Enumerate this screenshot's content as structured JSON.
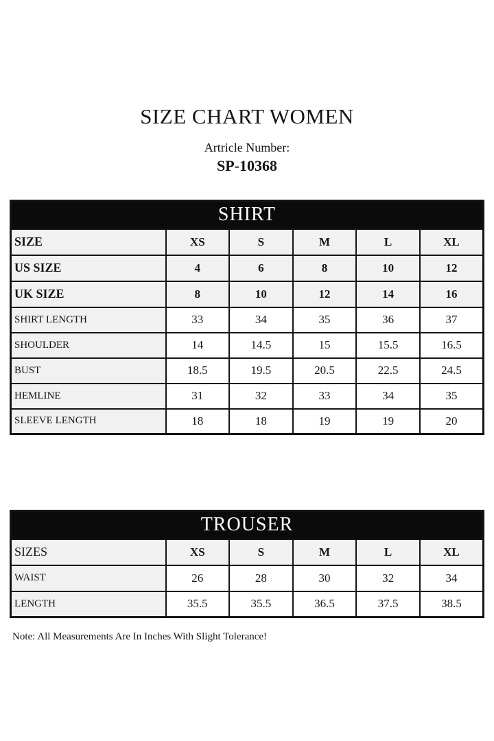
{
  "header": {
    "title": "SIZE CHART WOMEN",
    "article_label": "Artricle Number:",
    "article_number": "SP-10368"
  },
  "shirt": {
    "banner": "SHIRT",
    "rows": [
      {
        "label": "SIZE",
        "values": [
          "XS",
          "S",
          "M",
          "L",
          "XL"
        ]
      },
      {
        "label": "US SIZE",
        "values": [
          "4",
          "6",
          "8",
          "10",
          "12"
        ]
      },
      {
        "label": "UK SIZE",
        "values": [
          "8",
          "10",
          "12",
          "14",
          "16"
        ]
      },
      {
        "label": "SHIRT LENGTH",
        "values": [
          "33",
          "34",
          "35",
          "36",
          "37"
        ]
      },
      {
        "label": "SHOULDER",
        "values": [
          "14",
          "14.5",
          "15",
          "15.5",
          "16.5"
        ]
      },
      {
        "label": "BUST",
        "values": [
          "18.5",
          "19.5",
          "20.5",
          "22.5",
          "24.5"
        ]
      },
      {
        "label": "HEMLINE",
        "values": [
          "31",
          "32",
          "33",
          "34",
          "35"
        ]
      },
      {
        "label": "SLEEVE LENGTH",
        "values": [
          "18",
          "18",
          "19",
          "19",
          "20"
        ]
      }
    ]
  },
  "trouser": {
    "banner": "TROUSER",
    "rows": [
      {
        "label": "SIZES",
        "values": [
          "XS",
          "S",
          "M",
          "L",
          "XL"
        ]
      },
      {
        "label": "WAIST",
        "values": [
          "26",
          "28",
          "30",
          "32",
          "34"
        ]
      },
      {
        "label": "LENGTH",
        "values": [
          "35.5",
          "35.5",
          "36.5",
          "37.5",
          "38.5"
        ]
      }
    ]
  },
  "footer": {
    "note": "Note: All Measurements Are In Inches With Slight Tolerance!"
  },
  "colors": {
    "banner_bg": "#0b0b0b",
    "banner_text": "#ffffff",
    "cell_gray": "#f1f1f1",
    "cell_white": "#ffffff",
    "border": "#141414",
    "text": "#151515"
  }
}
